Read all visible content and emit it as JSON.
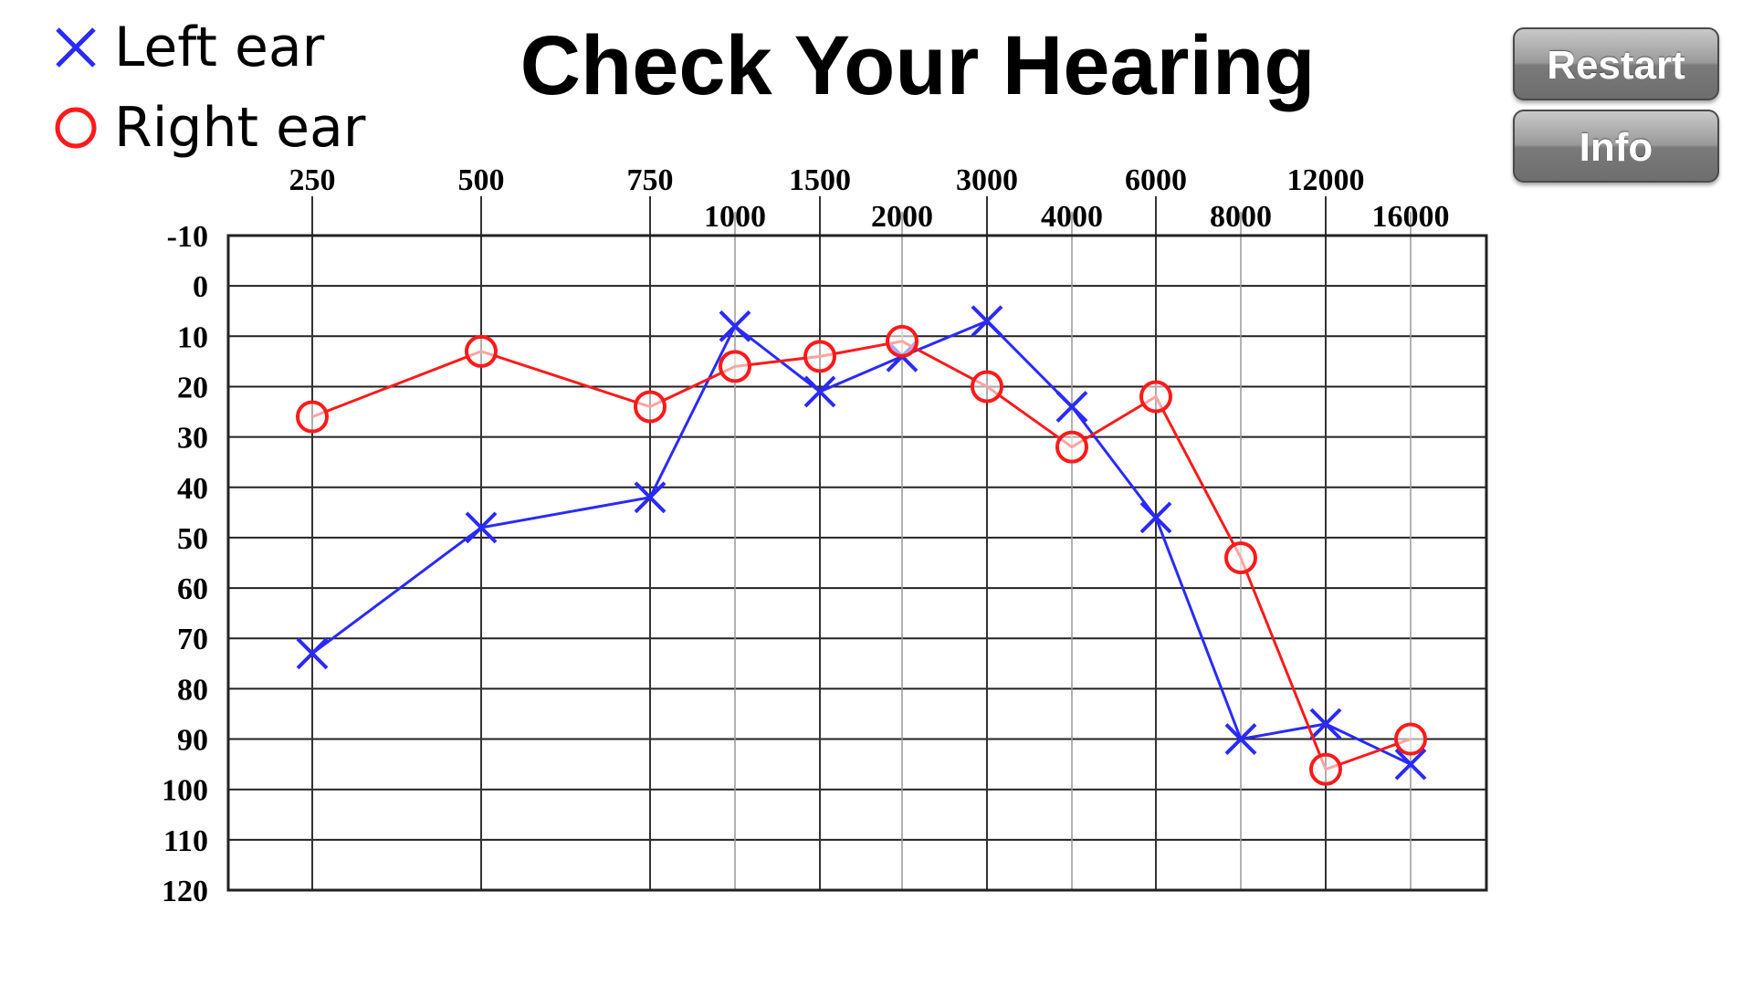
{
  "title": "Check Your Hearing",
  "buttons": {
    "restart": "Restart",
    "info": "Info"
  },
  "legend": [
    {
      "name": "Left ear",
      "symbol": "x-mark",
      "color": "#2a2aff"
    },
    {
      "name": "Right ear",
      "symbol": "circle",
      "color": "#ff1a1a"
    }
  ],
  "chart_data": {
    "type": "line",
    "x_categories": [
      "250",
      "500",
      "750",
      "1000",
      "1500",
      "2000",
      "3000",
      "4000",
      "6000",
      "8000",
      "12000",
      "16000"
    ],
    "x_tick_rows": {
      "top": [
        "250",
        "500",
        "750",
        "1500",
        "3000",
        "6000",
        "12000"
      ],
      "bottom": [
        "1000",
        "2000",
        "4000",
        "8000",
        "16000"
      ]
    },
    "y_ticks": [
      "-10",
      "0",
      "10",
      "20",
      "30",
      "40",
      "50",
      "60",
      "70",
      "80",
      "90",
      "100",
      "110",
      "120"
    ],
    "ylim": [
      -10,
      120
    ],
    "y_inverted": true,
    "grid": true,
    "legend_position": "top-left",
    "series": [
      {
        "name": "Left ear",
        "marker": "x",
        "color": "#2a2aff",
        "values": [
          73,
          48,
          42,
          8,
          21,
          14,
          7,
          24,
          46,
          90,
          87,
          95
        ]
      },
      {
        "name": "Right ear",
        "marker": "o",
        "color": "#ff1a1a",
        "values": [
          26,
          13,
          24,
          16,
          14,
          11,
          20,
          32,
          22,
          54,
          96,
          90
        ]
      }
    ]
  }
}
